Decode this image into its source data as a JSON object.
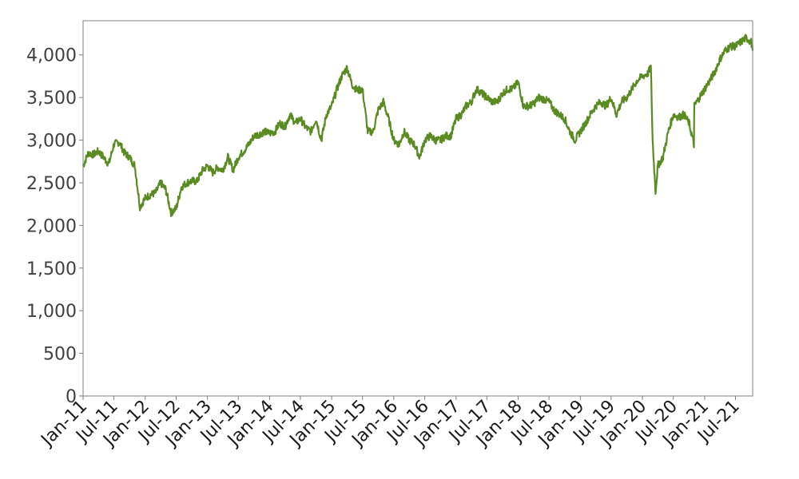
{
  "chart_data": {
    "type": "line",
    "title": "",
    "xlabel": "",
    "ylabel": "",
    "grid": false,
    "legend": "none",
    "ylim": [
      0,
      4400
    ],
    "xlim": [
      "2011-01-01",
      "2021-10-10"
    ],
    "yticks": [
      0,
      500,
      1000,
      1500,
      2000,
      2500,
      3000,
      3500,
      4000
    ],
    "ytick_labels": [
      "0",
      "500",
      "1,000",
      "1,500",
      "2,000",
      "2,500",
      "3,000",
      "3,500",
      "4,000"
    ],
    "xticks": [
      "2011-01-01",
      "2011-07-01",
      "2012-01-01",
      "2012-07-01",
      "2013-01-01",
      "2013-07-01",
      "2014-01-01",
      "2014-07-01",
      "2015-01-01",
      "2015-07-01",
      "2016-01-01",
      "2016-07-01",
      "2017-01-01",
      "2017-07-01",
      "2018-01-01",
      "2018-07-01",
      "2019-01-01",
      "2019-07-01",
      "2020-01-01",
      "2020-07-01",
      "2021-01-01",
      "2021-07-01"
    ],
    "xtick_labels": [
      "Jan-11",
      "Jul-11",
      "Jan-12",
      "Jul-12",
      "Jan-13",
      "Jul-13",
      "Jan-14",
      "Jul-14",
      "Jan-15",
      "Jul-15",
      "Jan-16",
      "Jul-16",
      "Jan-17",
      "Jul-17",
      "Jan-18",
      "Jul-18",
      "Jan-19",
      "Jul-19",
      "Jan-20",
      "Jul-20",
      "Jan-21",
      "Jul-21"
    ],
    "series": [
      {
        "color": "#5a8a22",
        "x": [
          "2011-01-01",
          "2011-02-01",
          "2011-03-01",
          "2011-04-01",
          "2011-05-01",
          "2011-06-01",
          "2011-07-01",
          "2011-08-01",
          "2011-09-01",
          "2011-10-01",
          "2011-11-01",
          "2011-12-01",
          "2012-01-01",
          "2012-02-01",
          "2012-03-01",
          "2012-04-01",
          "2012-05-01",
          "2012-06-01",
          "2012-07-01",
          "2012-08-01",
          "2012-09-01",
          "2012-10-01",
          "2012-11-01",
          "2012-12-01",
          "2013-01-01",
          "2013-02-01",
          "2013-03-01",
          "2013-04-01",
          "2013-05-01",
          "2013-06-01",
          "2013-07-01",
          "2013-08-01",
          "2013-09-01",
          "2013-10-01",
          "2013-11-01",
          "2013-12-01",
          "2014-01-01",
          "2014-02-01",
          "2014-03-01",
          "2014-04-01",
          "2014-05-01",
          "2014-06-01",
          "2014-07-01",
          "2014-08-01",
          "2014-09-01",
          "2014-10-01",
          "2014-11-01",
          "2014-12-01",
          "2015-01-01",
          "2015-02-01",
          "2015-03-01",
          "2015-04-01",
          "2015-05-01",
          "2015-06-01",
          "2015-07-01",
          "2015-08-01",
          "2015-09-01",
          "2015-10-01",
          "2015-11-01",
          "2015-12-01",
          "2016-01-01",
          "2016-02-01",
          "2016-03-01",
          "2016-04-01",
          "2016-05-01",
          "2016-06-01",
          "2016-07-01",
          "2016-08-01",
          "2016-09-01",
          "2016-10-01",
          "2016-11-01",
          "2016-12-01",
          "2017-01-01",
          "2017-02-01",
          "2017-03-01",
          "2017-04-01",
          "2017-05-01",
          "2017-06-01",
          "2017-07-01",
          "2017-08-01",
          "2017-09-01",
          "2017-10-01",
          "2017-11-01",
          "2017-12-01",
          "2018-01-01",
          "2018-02-01",
          "2018-03-01",
          "2018-04-01",
          "2018-05-01",
          "2018-06-01",
          "2018-07-01",
          "2018-08-01",
          "2018-09-01",
          "2018-10-01",
          "2018-11-01",
          "2018-12-01",
          "2019-01-01",
          "2019-02-01",
          "2019-03-01",
          "2019-04-01",
          "2019-05-01",
          "2019-06-01",
          "2019-07-01",
          "2019-08-01",
          "2019-09-01",
          "2019-10-01",
          "2019-11-01",
          "2019-12-01",
          "2020-01-01",
          "2020-02-01",
          "2020-02-20",
          "2020-03-01",
          "2020-03-18",
          "2020-04-01",
          "2020-05-01",
          "2020-06-01",
          "2020-07-01",
          "2020-08-01",
          "2020-09-01",
          "2020-10-01",
          "2020-10-30",
          "2020-11-01",
          "2020-12-01",
          "2021-01-01",
          "2021-02-01",
          "2021-03-01",
          "2021-04-01",
          "2021-05-01",
          "2021-06-01",
          "2021-07-01",
          "2021-08-01",
          "2021-09-01",
          "2021-10-01",
          "2021-10-10"
        ],
        "y": [
          2700,
          2850,
          2830,
          2870,
          2800,
          2720,
          2950,
          2980,
          2850,
          2800,
          2700,
          2220,
          2320,
          2360,
          2380,
          2500,
          2420,
          2150,
          2200,
          2450,
          2500,
          2520,
          2520,
          2640,
          2700,
          2620,
          2680,
          2650,
          2800,
          2650,
          2800,
          2870,
          2950,
          3050,
          3070,
          3100,
          3080,
          3100,
          3200,
          3160,
          3300,
          3200,
          3250,
          3150,
          3100,
          3250,
          3000,
          3300,
          3400,
          3600,
          3750,
          3850,
          3650,
          3580,
          3600,
          3100,
          3100,
          3350,
          3450,
          3250,
          3000,
          2950,
          3100,
          3000,
          2950,
          2800,
          3000,
          3050,
          3000,
          3000,
          3050,
          3050,
          3250,
          3300,
          3400,
          3450,
          3600,
          3550,
          3500,
          3450,
          3450,
          3550,
          3600,
          3600,
          3680,
          3400,
          3400,
          3420,
          3500,
          3480,
          3450,
          3350,
          3300,
          3250,
          3100,
          3000,
          3100,
          3200,
          3300,
          3400,
          3450,
          3400,
          3500,
          3300,
          3450,
          3500,
          3600,
          3700,
          3750,
          3780,
          3850,
          3000,
          2400,
          2700,
          2800,
          3100,
          3300,
          3270,
          3300,
          3200,
          2950,
          3400,
          3500,
          3600,
          3700,
          3800,
          3950,
          4050,
          4100,
          4100,
          4150,
          4200,
          4150,
          4050
        ]
      }
    ]
  }
}
